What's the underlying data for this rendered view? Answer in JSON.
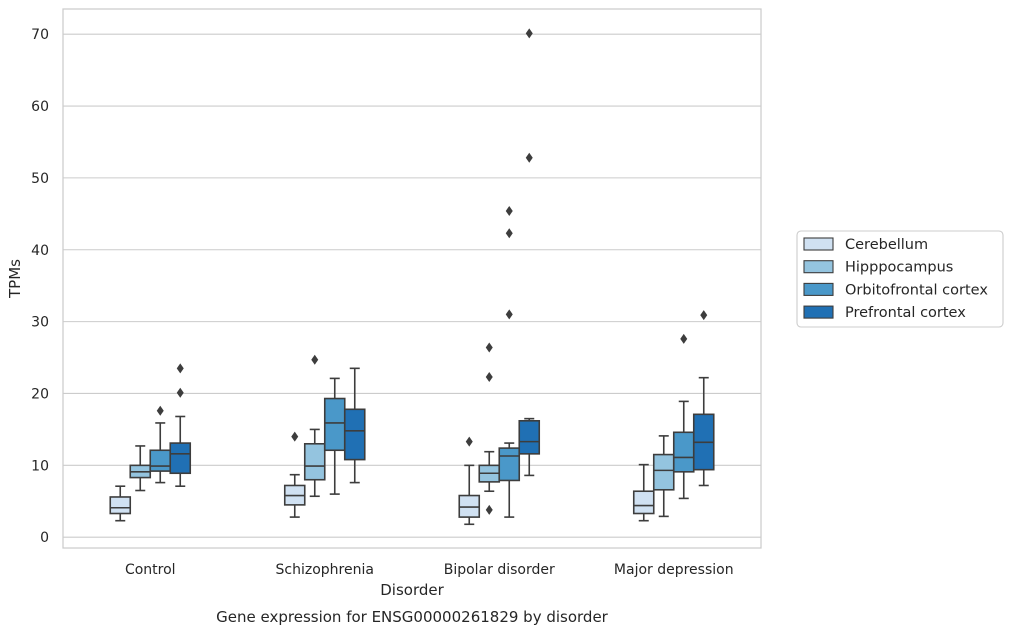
{
  "caption": "Gene expression for ENSG00000261829 by disorder",
  "chart_data": {
    "type": "box",
    "title": "",
    "xlabel": "Disorder",
    "ylabel": "TPMs",
    "ylim": [
      -1.5,
      73.5
    ],
    "yticks": [
      0,
      10,
      20,
      30,
      40,
      50,
      60,
      70
    ],
    "grid": "horizontal",
    "legend_position": "right",
    "categories": [
      "Control",
      "Schizophrenia",
      "Bipolar disorder",
      "Major depression"
    ],
    "series": [
      {
        "name": "Cerebellum",
        "color": "#d0e1f2",
        "boxes": [
          {
            "whislo": 2.3,
            "q1": 3.3,
            "med": 4.1,
            "q3": 5.6,
            "whishi": 7.1,
            "fliers": []
          },
          {
            "whislo": 2.8,
            "q1": 4.5,
            "med": 5.8,
            "q3": 7.2,
            "whishi": 8.7,
            "fliers": [
              14.0
            ]
          },
          {
            "whislo": 1.8,
            "q1": 2.8,
            "med": 4.2,
            "q3": 5.8,
            "whishi": 10.0,
            "fliers": [
              13.3
            ]
          },
          {
            "whislo": 2.3,
            "q1": 3.3,
            "med": 4.4,
            "q3": 6.4,
            "whishi": 10.1,
            "fliers": []
          }
        ]
      },
      {
        "name": "Hipppocampus",
        "color": "#94c4df",
        "boxes": [
          {
            "whislo": 6.5,
            "q1": 8.3,
            "med": 9.1,
            "q3": 10.0,
            "whishi": 12.7,
            "fliers": []
          },
          {
            "whislo": 5.7,
            "q1": 8.0,
            "med": 9.9,
            "q3": 13.0,
            "whishi": 15.0,
            "fliers": [
              24.7
            ]
          },
          {
            "whislo": 6.4,
            "q1": 7.7,
            "med": 8.9,
            "q3": 10.0,
            "whishi": 11.9,
            "fliers": [
              3.8,
              22.3,
              26.4
            ]
          },
          {
            "whislo": 2.9,
            "q1": 6.6,
            "med": 9.3,
            "q3": 11.5,
            "whishi": 14.1,
            "fliers": []
          }
        ]
      },
      {
        "name": "Orbitofrontal cortex",
        "color": "#4a98c9",
        "boxes": [
          {
            "whislo": 7.6,
            "q1": 9.2,
            "med": 9.9,
            "q3": 12.1,
            "whishi": 15.9,
            "fliers": [
              17.6
            ]
          },
          {
            "whislo": 6.0,
            "q1": 12.1,
            "med": 15.9,
            "q3": 19.3,
            "whishi": 22.1,
            "fliers": []
          },
          {
            "whislo": 2.8,
            "q1": 7.9,
            "med": 11.3,
            "q3": 12.4,
            "whishi": 13.1,
            "fliers": [
              31.0,
              42.3,
              45.4
            ]
          },
          {
            "whislo": 5.4,
            "q1": 9.1,
            "med": 11.1,
            "q3": 14.6,
            "whishi": 18.9,
            "fliers": [
              27.6
            ]
          }
        ]
      },
      {
        "name": "Prefrontal cortex",
        "color": "#2070b4",
        "boxes": [
          {
            "whislo": 7.1,
            "q1": 8.9,
            "med": 11.6,
            "q3": 13.1,
            "whishi": 16.8,
            "fliers": [
              20.1,
              23.5
            ]
          },
          {
            "whislo": 7.6,
            "q1": 10.8,
            "med": 14.8,
            "q3": 17.8,
            "whishi": 23.5,
            "fliers": []
          },
          {
            "whislo": 8.6,
            "q1": 11.6,
            "med": 13.3,
            "q3": 16.2,
            "whishi": 16.5,
            "fliers": [
              52.8,
              70.1
            ]
          },
          {
            "whislo": 7.2,
            "q1": 9.4,
            "med": 13.2,
            "q3": 17.1,
            "whishi": 22.2,
            "fliers": [
              30.9
            ]
          }
        ]
      }
    ]
  }
}
